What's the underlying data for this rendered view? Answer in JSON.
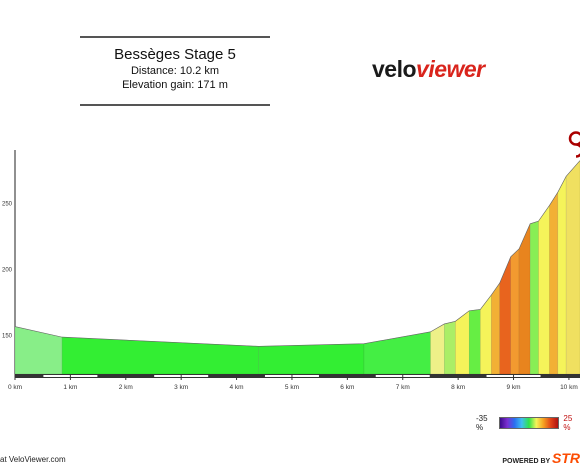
{
  "header": {
    "title": "Bessèges Stage 5",
    "distance_label": "Distance: 10.2 km",
    "elevation_label": "Elevation gain: 171 m"
  },
  "logo": {
    "part1": "velo",
    "part2": "viewer"
  },
  "legend": {
    "min_label": "-35 %",
    "max_label": "25 %"
  },
  "footer": {
    "left_text": "at VeloViewer.com",
    "powered_by": "POWERED BY",
    "brand": "STR"
  },
  "colors": {
    "flat_green": "#33ee33",
    "light_green": "#88ee88",
    "yellow": "#f5f35a",
    "orange": "#f29a30",
    "red_orange": "#e8641e",
    "accent_red": "#d9241c"
  },
  "chart_data": {
    "type": "area",
    "title": "Bessèges Stage 5",
    "xlabel": "",
    "ylabel": "",
    "x_unit": "km",
    "xlim": [
      0,
      10.2
    ],
    "ylim": [
      120,
      290
    ],
    "x_ticks": [
      0,
      1,
      2,
      3,
      4,
      5,
      6,
      7,
      8,
      9,
      10
    ],
    "x_tick_labels": [
      "0 km",
      "1 km",
      "2 km",
      "3 km",
      "4 km",
      "5 km",
      "6 km",
      "7 km",
      "8 km",
      "9 km",
      "10 km"
    ],
    "y_ticks": [
      150,
      200,
      250
    ],
    "y_tick_labels": [
      "150",
      "200",
      "250"
    ],
    "segments": [
      {
        "x0": 0.0,
        "x1": 0.85,
        "y0": 156,
        "y1": 148,
        "color": "#88ee88"
      },
      {
        "x0": 0.85,
        "x1": 4.4,
        "y0": 148,
        "y1": 141,
        "color": "#33ee33"
      },
      {
        "x0": 4.4,
        "x1": 6.3,
        "y0": 141,
        "y1": 143,
        "color": "#33ee33"
      },
      {
        "x0": 6.3,
        "x1": 7.5,
        "y0": 143,
        "y1": 152,
        "color": "#44ee44"
      },
      {
        "x0": 7.5,
        "x1": 7.75,
        "y0": 152,
        "y1": 158,
        "color": "#eef088"
      },
      {
        "x0": 7.75,
        "x1": 7.95,
        "y0": 158,
        "y1": 160,
        "color": "#aaee66"
      },
      {
        "x0": 7.95,
        "x1": 8.2,
        "y0": 160,
        "y1": 168,
        "color": "#f5f35a"
      },
      {
        "x0": 8.2,
        "x1": 8.4,
        "y0": 168,
        "y1": 169,
        "color": "#66ee44"
      },
      {
        "x0": 8.4,
        "x1": 8.6,
        "y0": 169,
        "y1": 180,
        "color": "#f5f35a"
      },
      {
        "x0": 8.6,
        "x1": 8.75,
        "y0": 180,
        "y1": 189,
        "color": "#f2b035"
      },
      {
        "x0": 8.75,
        "x1": 8.95,
        "y0": 189,
        "y1": 209,
        "color": "#e8641e"
      },
      {
        "x0": 8.95,
        "x1": 9.1,
        "y0": 209,
        "y1": 215,
        "color": "#f29a30"
      },
      {
        "x0": 9.1,
        "x1": 9.3,
        "y0": 215,
        "y1": 234,
        "color": "#e8841e"
      },
      {
        "x0": 9.3,
        "x1": 9.45,
        "y0": 234,
        "y1": 236,
        "color": "#88ee55"
      },
      {
        "x0": 9.45,
        "x1": 9.65,
        "y0": 236,
        "y1": 248,
        "color": "#f5f35a"
      },
      {
        "x0": 9.65,
        "x1": 9.8,
        "y0": 248,
        "y1": 258,
        "color": "#f2b035"
      },
      {
        "x0": 9.8,
        "x1": 9.95,
        "y0": 258,
        "y1": 270,
        "color": "#f5f35a"
      },
      {
        "x0": 9.95,
        "x1": 10.2,
        "y0": 270,
        "y1": 282,
        "color": "#f0e060"
      }
    ]
  }
}
